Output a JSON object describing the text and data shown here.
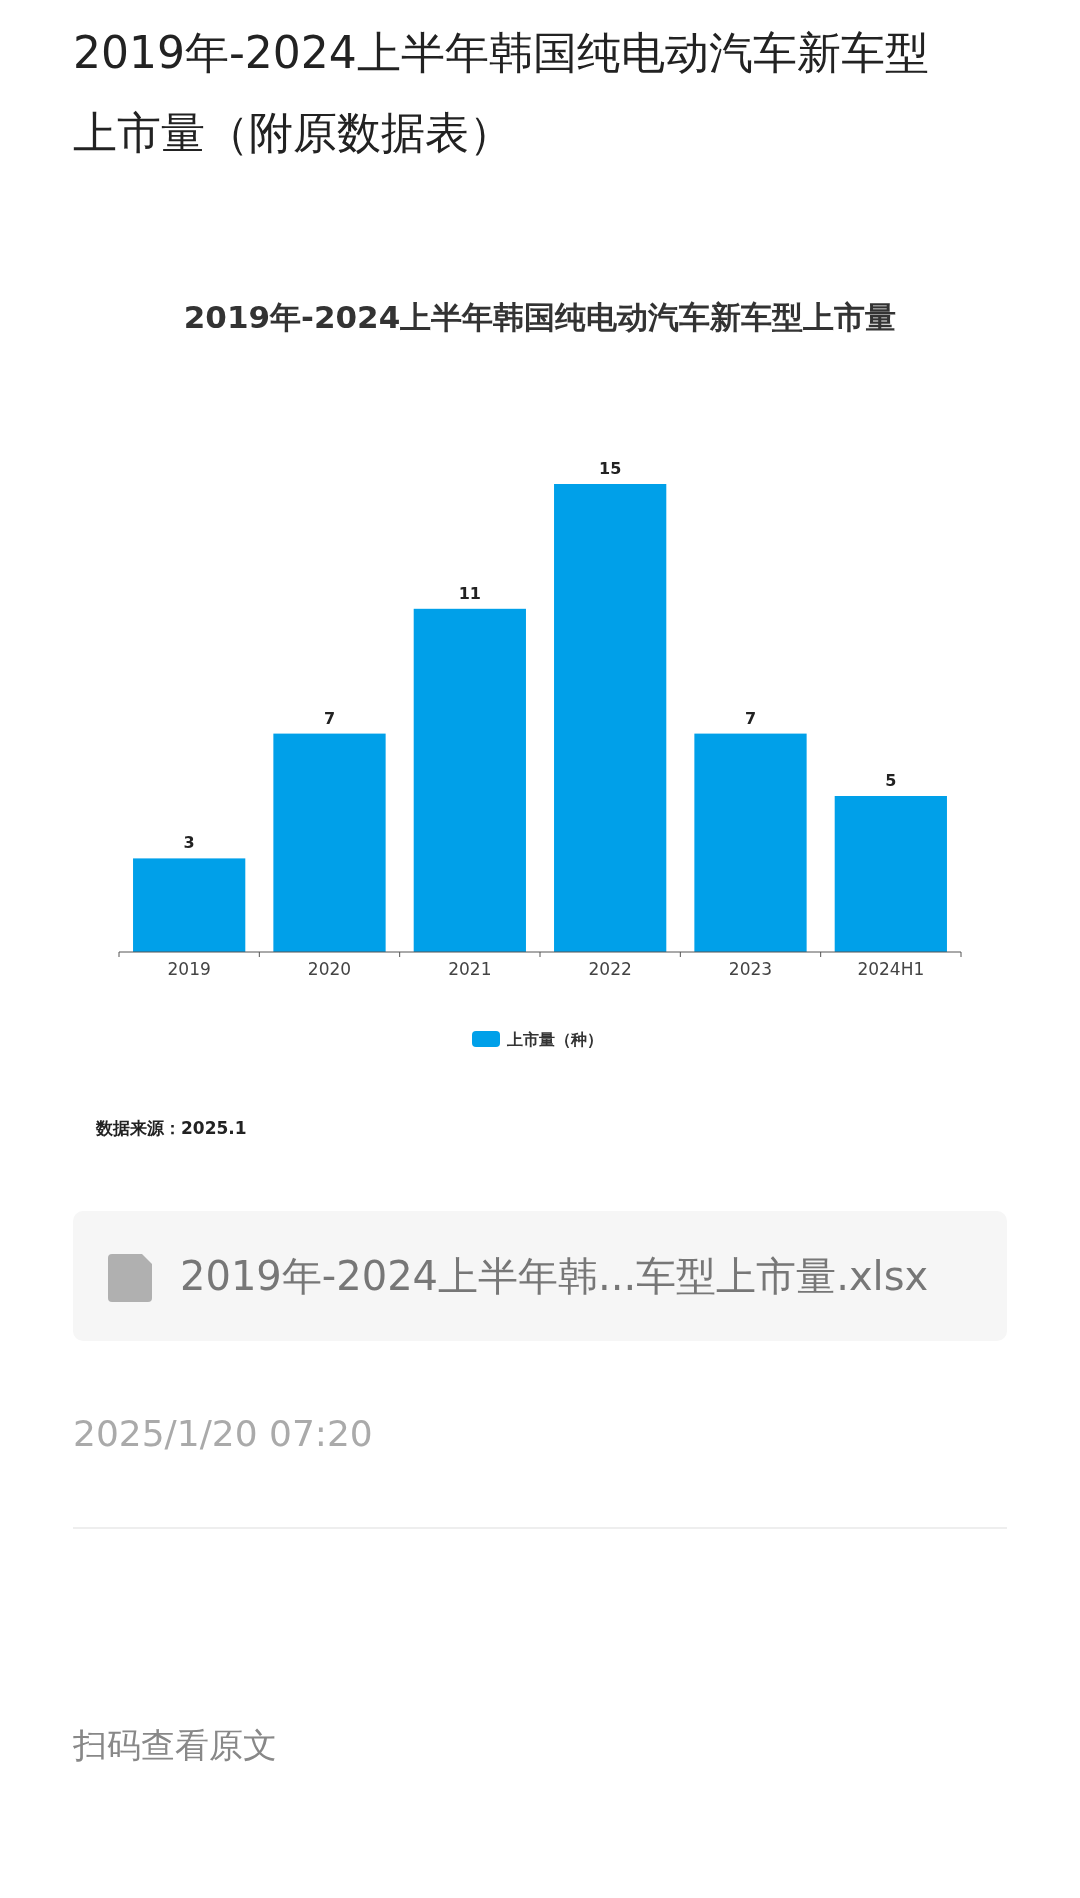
{
  "chart_data": {
    "type": "bar",
    "title": "2019年-2024上半年韩国纯电动汽车新车型上市量（附原数据表）",
    "subtitle": "2019年-2024上半年韩国纯电动汽车新车型上市量",
    "categories": [
      "2019",
      "2020",
      "2021",
      "2022",
      "2023",
      "2024H1"
    ],
    "series": [
      {
        "name": "上市量（种）",
        "color": "#00a0e9",
        "values": [
          3,
          7,
          11,
          15,
          7,
          5
        ]
      }
    ],
    "data_labels": true,
    "legend": "bottom",
    "grid": false,
    "annotations": [
      "数据来源：2025.1",
      "2019年-2024上半年韩...车型上市量.xlsx",
      "2025/1/20 07:20",
      "扫码查看原文"
    ]
  }
}
